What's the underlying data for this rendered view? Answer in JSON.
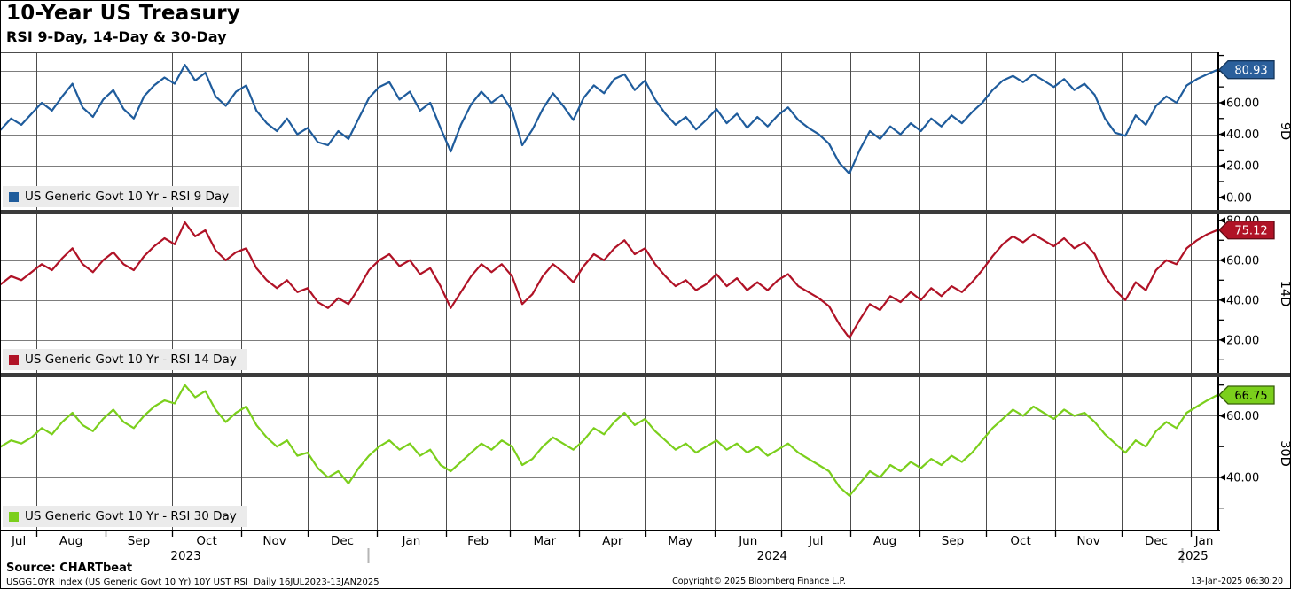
{
  "header": {
    "title": "10-Year US Treasury",
    "subtitle": "RSI 9-Day, 14-Day & 30-Day"
  },
  "footer": {
    "source": "Source: CHARTbeat",
    "descriptor": "USGG10YR Index (US Generic Govt 10 Yr) 10Y UST RSI  Daily 16JUL2023-13JAN2025",
    "copyright": "Copyright© 2025 Bloomberg Finance L.P.",
    "timestamp": "13-Jan-2025 06:30:20"
  },
  "chart_data": {
    "type": "line",
    "title": "10-Year US Treasury",
    "subtitle": "RSI 9-Day, 14-Day & 30-Day",
    "date_range": "16JUL2023-13JAN2025",
    "grid": true,
    "x_axis": {
      "month_labels": [
        "Jul",
        "Aug",
        "Sep",
        "Oct",
        "Nov",
        "Dec",
        "Jan",
        "Feb",
        "Mar",
        "Apr",
        "May",
        "Jun",
        "Jul",
        "Aug",
        "Sep",
        "Oct",
        "Nov",
        "Dec",
        "Jan"
      ],
      "month_boundaries_f": [
        0.0293,
        0.0859,
        0.1408,
        0.1975,
        0.2523,
        0.309,
        0.3657,
        0.4187,
        0.4753,
        0.5302,
        0.5868,
        0.6417,
        0.6984,
        0.755,
        0.8099,
        0.8666,
        0.9214,
        0.9781
      ],
      "year_labels": [
        {
          "label": "2023",
          "f": 0.152
        },
        {
          "label": "2024",
          "f": 0.634
        },
        {
          "label": "2025",
          "f": 0.98
        }
      ],
      "year_ticks_f": [
        0.309,
        0.9781
      ]
    },
    "panels": [
      {
        "name": "rsi-9-day",
        "label": "9D",
        "legend": "US Generic Govt 10 Yr - RSI 9 Day",
        "color": "#1f5c9c",
        "badge": {
          "text": "80.93",
          "bg": "#2a5f9b",
          "border": "#14365c",
          "text_color": "#ffffff"
        },
        "last": 80.93,
        "ymin": -8,
        "ymax": 92,
        "height": 178,
        "top_border": true,
        "tick_labels": [
          "0.00",
          "20.00",
          "40.00",
          "60.00",
          "80.00"
        ],
        "values": [
          43,
          50,
          46,
          53,
          60,
          55,
          64,
          72,
          57,
          51,
          62,
          68,
          56,
          50,
          64,
          71,
          76,
          72,
          84,
          74,
          79,
          64,
          58,
          67,
          71,
          55,
          47,
          42,
          50,
          40,
          44,
          35,
          33,
          42,
          37,
          50,
          63,
          70,
          73,
          62,
          67,
          55,
          60,
          44,
          29,
          46,
          59,
          67,
          60,
          65,
          55,
          33,
          43,
          56,
          66,
          58,
          49,
          63,
          71,
          66,
          75,
          78,
          68,
          74,
          62,
          53,
          46,
          51,
          43,
          49,
          56,
          47,
          53,
          44,
          51,
          45,
          52,
          57,
          49,
          44,
          40,
          34,
          22,
          15,
          30,
          42,
          37,
          45,
          40,
          47,
          42,
          50,
          45,
          52,
          47,
          54,
          60,
          68,
          74,
          77,
          73,
          78,
          74,
          70,
          75,
          68,
          72,
          65,
          50,
          41,
          39,
          52,
          46,
          58,
          64,
          60,
          71,
          75,
          78,
          80.93
        ]
      },
      {
        "name": "rsi-14-day",
        "label": "14D",
        "legend": "US Generic Govt 10 Yr - RSI 14 Day",
        "color": "#b01226",
        "badge": {
          "text": "75.12",
          "bg": "#b01226",
          "border": "#5e0813",
          "text_color": "#ffffff"
        },
        "last": 75.12,
        "ymin": 3.5,
        "ymax": 83,
        "height": 179,
        "top_border": false,
        "tick_labels": [
          "20.00",
          "40.00",
          "60.00",
          "80.00"
        ],
        "values": [
          48,
          52,
          50,
          54,
          58,
          55,
          61,
          66,
          58,
          54,
          60,
          64,
          58,
          55,
          62,
          67,
          71,
          68,
          79,
          72,
          75,
          65,
          60,
          64,
          66,
          56,
          50,
          46,
          50,
          44,
          46,
          39,
          36,
          41,
          38,
          46,
          55,
          60,
          63,
          57,
          60,
          53,
          56,
          47,
          36,
          44,
          52,
          58,
          54,
          58,
          52,
          38,
          43,
          52,
          58,
          54,
          49,
          57,
          63,
          60,
          66,
          70,
          63,
          66,
          58,
          52,
          47,
          50,
          45,
          48,
          53,
          47,
          51,
          45,
          49,
          45,
          50,
          53,
          47,
          44,
          41,
          37,
          28,
          21,
          30,
          38,
          35,
          42,
          39,
          44,
          40,
          46,
          42,
          47,
          44,
          49,
          55,
          62,
          68,
          72,
          69,
          73,
          70,
          67,
          71,
          66,
          69,
          63,
          52,
          45,
          40,
          49,
          45,
          55,
          60,
          58,
          66,
          70,
          73,
          75.12
        ]
      },
      {
        "name": "rsi-30-day",
        "label": "30D",
        "legend": "US Generic Govt 10 Yr - RSI 30 Day",
        "color": "#7bcf1c",
        "badge": {
          "text": "66.75",
          "bg": "#7bcf1c",
          "border": "#365e08",
          "text_color": "#000000"
        },
        "last": 66.75,
        "ymin": 23,
        "ymax": 72.5,
        "height": 172,
        "top_border": false,
        "tick_labels": [
          "40.00",
          "60.00"
        ],
        "values": [
          50,
          52,
          51,
          53,
          56,
          54,
          58,
          61,
          57,
          55,
          59,
          62,
          58,
          56,
          60,
          63,
          65,
          64,
          70,
          66,
          68,
          62,
          58,
          61,
          63,
          57,
          53,
          50,
          52,
          47,
          48,
          43,
          40,
          42,
          38,
          43,
          47,
          50,
          52,
          49,
          51,
          47,
          49,
          44,
          42,
          45,
          48,
          51,
          49,
          52,
          50,
          44,
          46,
          50,
          53,
          51,
          49,
          52,
          56,
          54,
          58,
          61,
          57,
          59,
          55,
          52,
          49,
          51,
          48,
          50,
          52,
          49,
          51,
          48,
          50,
          47,
          49,
          51,
          48,
          46,
          44,
          42,
          37,
          34,
          38,
          42,
          40,
          44,
          42,
          45,
          43,
          46,
          44,
          47,
          45,
          48,
          52,
          56,
          59,
          62,
          60,
          63,
          61,
          59,
          62,
          60,
          61,
          58,
          54,
          51,
          48,
          52,
          50,
          55,
          58,
          56,
          61,
          63,
          65,
          66.75
        ]
      }
    ]
  }
}
